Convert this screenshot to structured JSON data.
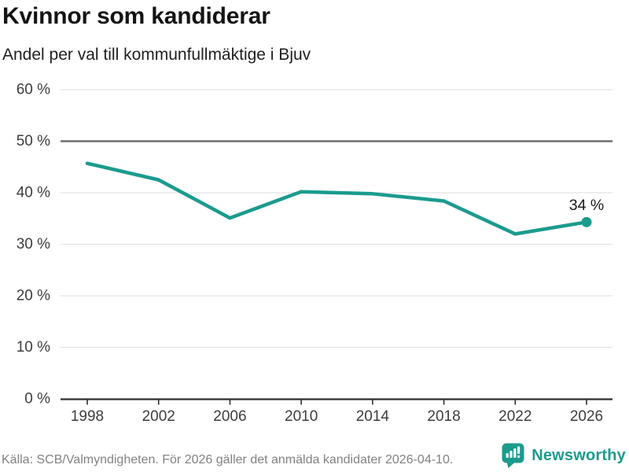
{
  "colors": {
    "accent": "#1b9b8d",
    "title": "#141414",
    "subtitle": "#1f1f1f",
    "tick_label": "#3d3d3d",
    "grid": "#e3e3e3",
    "reference": "#6f6f6f",
    "axis": "#2e2e2e",
    "source": "#828282",
    "point_label": "#1a1a1a"
  },
  "header": {
    "title": "Kvinnor som kandiderar",
    "subtitle": "Andel per val till kommunfullmäktige i Bjuv"
  },
  "footer": {
    "source": "Källa: SCB/Valmyndigheten. För 2026 gäller det anmälda kandidater 2026-04-10.",
    "brand": "Newsworthy"
  },
  "chart_data": {
    "type": "line",
    "title": "Kvinnor som kandiderar",
    "subtitle": "Andel per val till kommunfullmäktige i Bjuv",
    "x": [
      "1998",
      "2002",
      "2006",
      "2010",
      "2014",
      "2018",
      "2022",
      "2026"
    ],
    "series": [
      {
        "name": "Andel kvinnor som kandiderar",
        "values": [
          45.7,
          42.5,
          35.1,
          40.2,
          39.8,
          38.4,
          32.0,
          34.3
        ]
      }
    ],
    "end_label": "34 %",
    "xlabel": "",
    "ylabel": "",
    "ylim": [
      0,
      60
    ],
    "ytick_step": 10,
    "yticks": [
      "0 %",
      "10 %",
      "20 %",
      "30 %",
      "40 %",
      "50 %",
      "60 %"
    ],
    "grid": "horizontal",
    "reference_line": 50,
    "legend": "none",
    "line_color": "#1b9b8d",
    "marker_last_point_only": true
  }
}
